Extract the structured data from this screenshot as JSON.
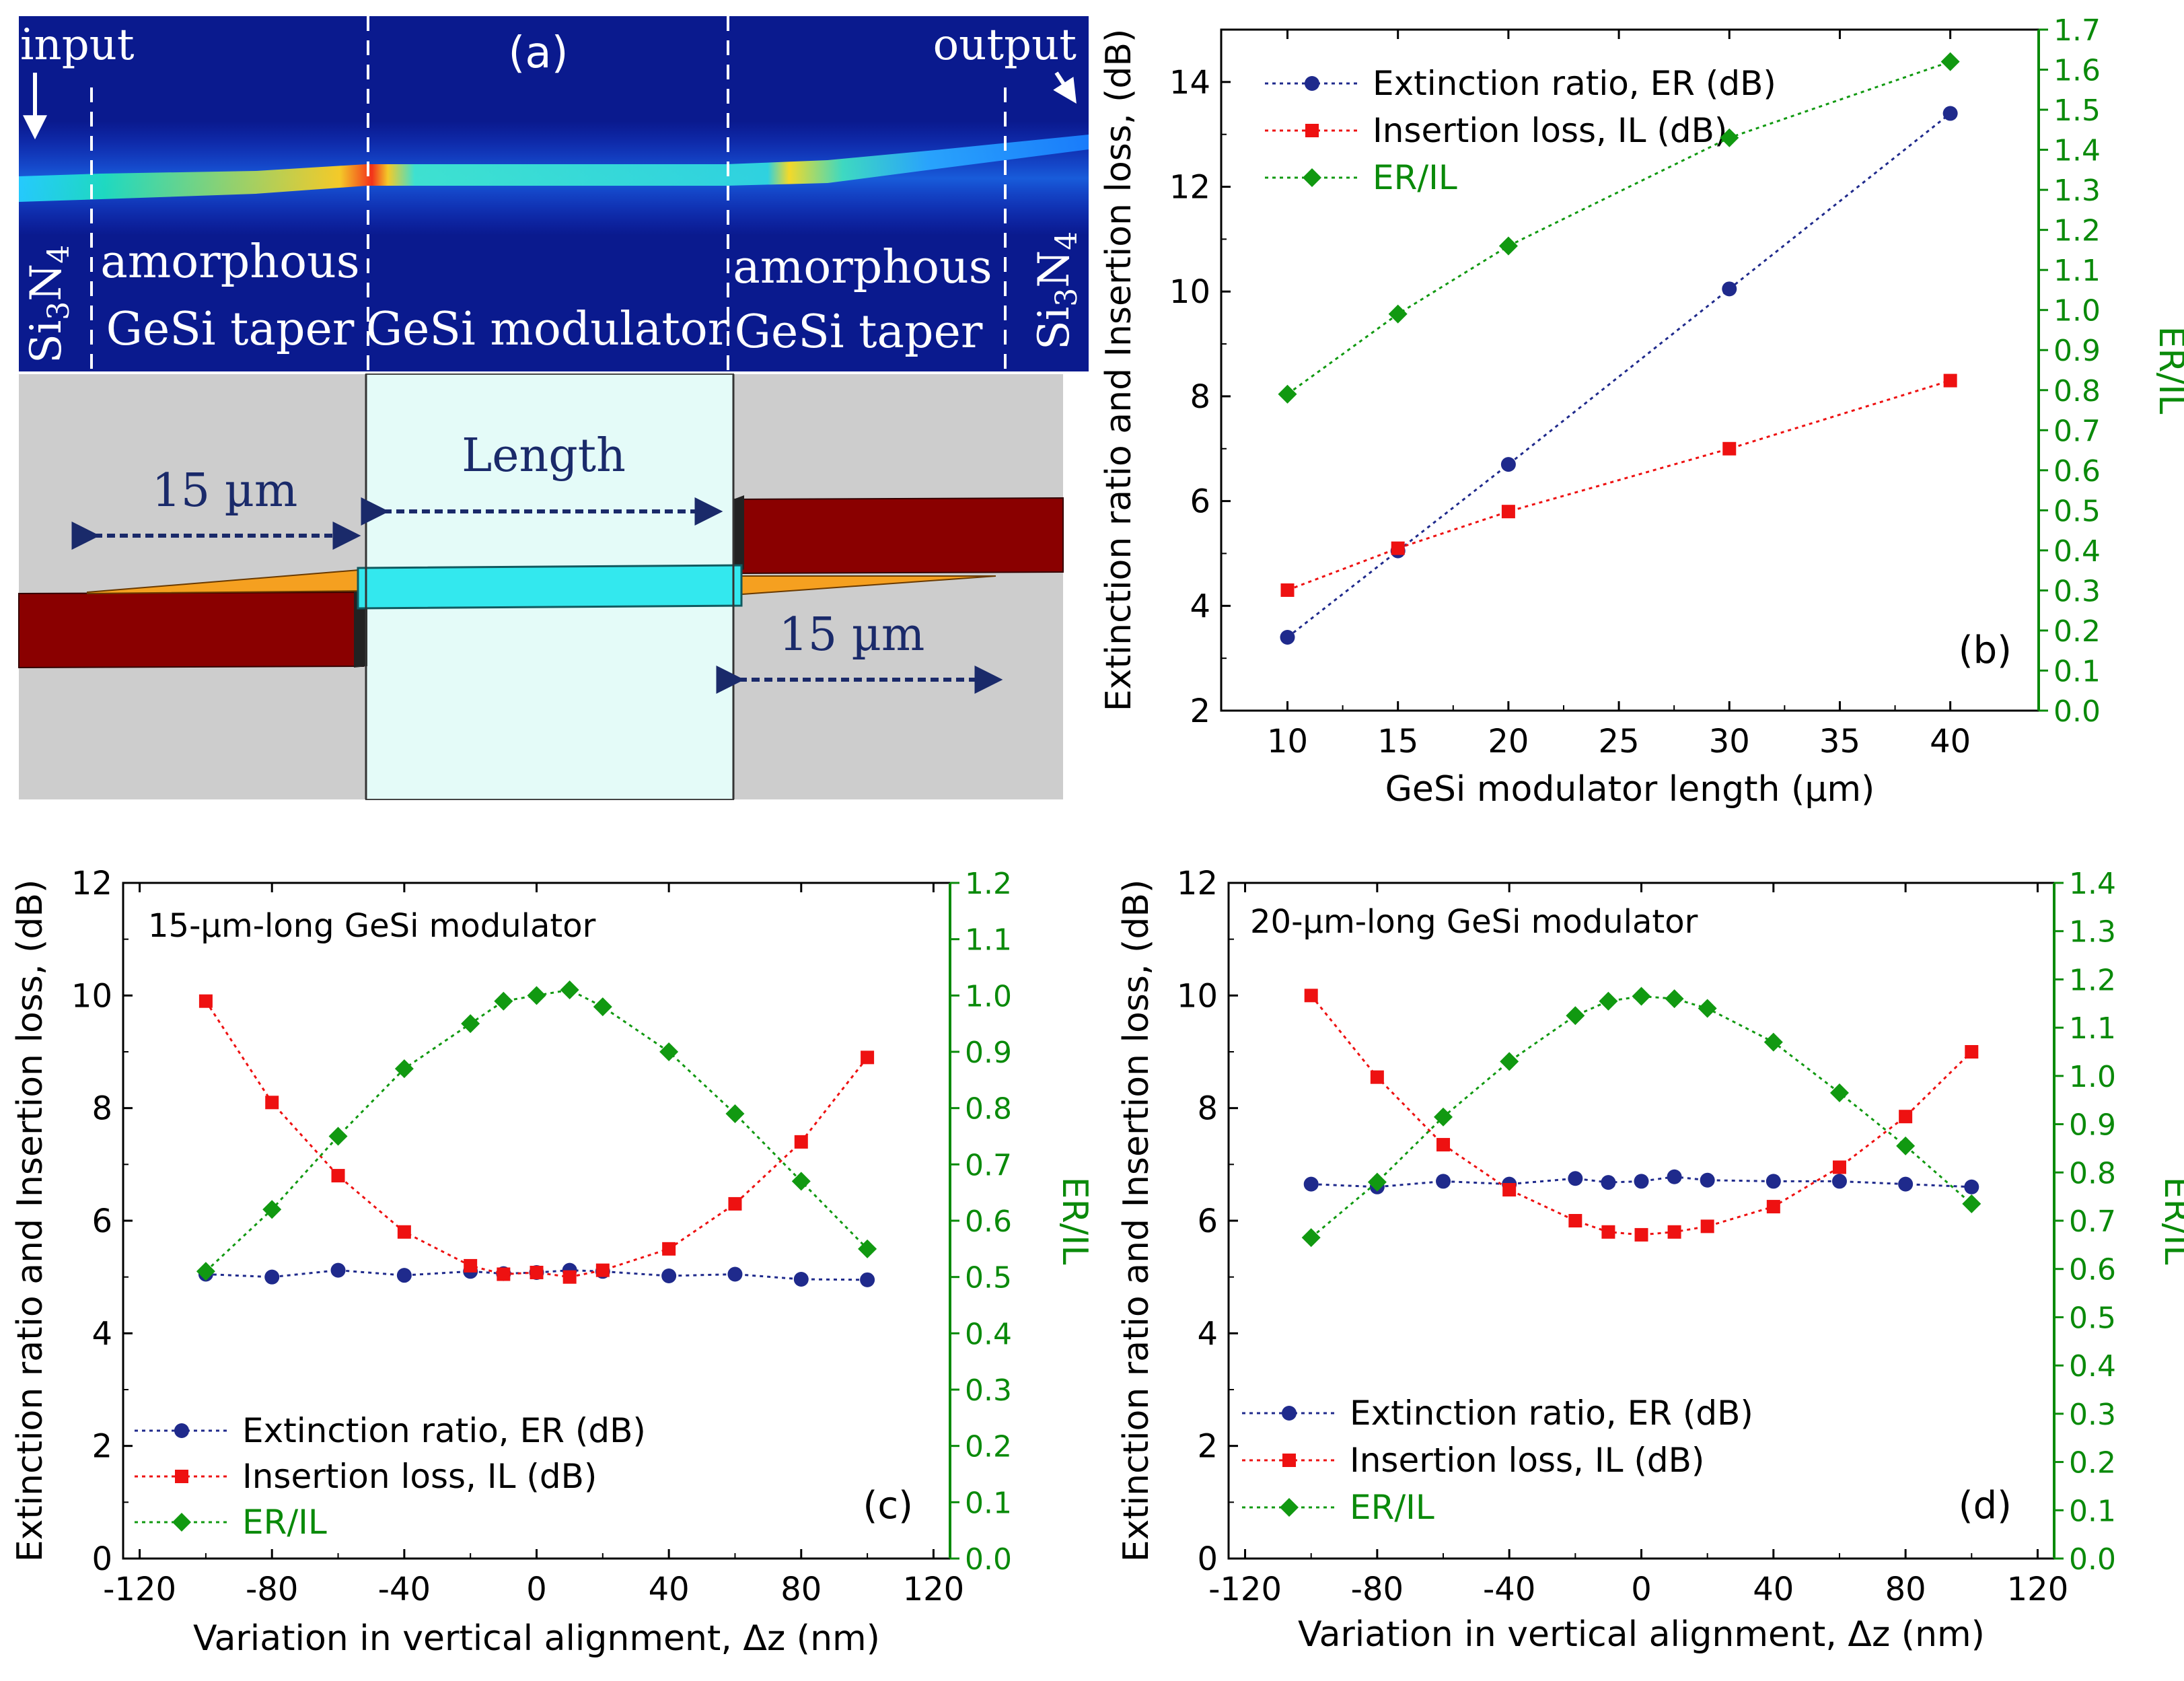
{
  "panel_a": {
    "label": "(a)",
    "input": "input",
    "output": "output",
    "si3n4_left": "Si3N4",
    "si3n4_right": "Si3N4",
    "taper_left_1": "amorphous",
    "taper_left_2": "GeSi taper",
    "modulator": "GeSi modulator",
    "taper_right_1": "amorphous",
    "taper_right_2": "GeSi taper",
    "length": "Length",
    "dim_left": "15 µm",
    "dim_right": "15 µm"
  },
  "colors": {
    "er": "#1f2a8c",
    "il": "#ee1111",
    "ratio": "#119911",
    "ratio_axis": "#0a8a0a"
  },
  "chart_data": [
    {
      "id": "b",
      "type": "line",
      "panel_label": "(b)",
      "xlabel": "GeSi modulator length (µm)",
      "ylabel": "Extinction ratio and Insertion loss, (dB)",
      "y2label": "ER/IL",
      "xlim": [
        7,
        44
      ],
      "xticks": [
        10,
        15,
        20,
        25,
        30,
        35,
        40
      ],
      "ylim": [
        2,
        15
      ],
      "yticks": [
        2,
        4,
        6,
        8,
        10,
        12,
        14
      ],
      "y2lim": [
        0,
        1.7
      ],
      "y2ticks": [
        0.0,
        0.1,
        0.2,
        0.3,
        0.4,
        0.5,
        0.6,
        0.7,
        0.8,
        0.9,
        1.0,
        1.1,
        1.2,
        1.3,
        1.4,
        1.5,
        1.6,
        1.7
      ],
      "legend_position": "top-left",
      "series": [
        {
          "name": "Extinction ratio, ER (dB)",
          "axis": "left",
          "marker": "circle",
          "x": [
            10,
            15,
            20,
            30,
            40
          ],
          "values": [
            3.4,
            5.05,
            6.7,
            10.05,
            13.4
          ]
        },
        {
          "name": "Insertion loss, IL (dB)",
          "axis": "left",
          "marker": "square",
          "x": [
            10,
            15,
            20,
            30,
            40
          ],
          "values": [
            4.3,
            5.1,
            5.8,
            7.0,
            8.3
          ]
        },
        {
          "name": "ER/IL",
          "axis": "right",
          "marker": "diamond",
          "x": [
            10,
            15,
            20,
            30,
            40
          ],
          "values": [
            0.79,
            0.99,
            1.16,
            1.43,
            1.62
          ]
        }
      ]
    },
    {
      "id": "c",
      "type": "line",
      "panel_label": "(c)",
      "annotation": "15-µm-long GeSi modulator",
      "xlabel": "Variation in vertical alignment, Δz (nm)",
      "ylabel": "Extinction ratio and Insertion loss, (dB)",
      "y2label": "ER/IL",
      "xlim": [
        -125,
        125
      ],
      "xticks": [
        -120,
        -80,
        -40,
        0,
        40,
        80,
        120
      ],
      "ylim": [
        0,
        12
      ],
      "yticks": [
        0,
        2,
        4,
        6,
        8,
        10,
        12
      ],
      "y2lim": [
        0,
        1.2
      ],
      "y2ticks": [
        0.0,
        0.1,
        0.2,
        0.3,
        0.4,
        0.5,
        0.6,
        0.7,
        0.8,
        0.9,
        1.0,
        1.1,
        1.2
      ],
      "legend_position": "bottom-left",
      "series": [
        {
          "name": "Extinction ratio, ER (dB)",
          "axis": "left",
          "marker": "circle",
          "x": [
            -100,
            -80,
            -60,
            -40,
            -20,
            -10,
            0,
            10,
            20,
            40,
            60,
            80,
            100
          ],
          "values": [
            5.05,
            5.0,
            5.12,
            5.03,
            5.1,
            5.06,
            5.08,
            5.12,
            5.1,
            5.02,
            5.05,
            4.96,
            4.95
          ]
        },
        {
          "name": "Insertion loss, IL (dB)",
          "axis": "left",
          "marker": "square",
          "x": [
            -100,
            -80,
            -60,
            -40,
            -20,
            -10,
            0,
            10,
            20,
            40,
            60,
            80,
            100
          ],
          "values": [
            9.9,
            8.1,
            6.8,
            5.8,
            5.2,
            5.05,
            5.08,
            5.0,
            5.12,
            5.5,
            6.3,
            7.4,
            8.9
          ]
        },
        {
          "name": "ER/IL",
          "axis": "right",
          "marker": "diamond",
          "x": [
            -100,
            -80,
            -60,
            -40,
            -20,
            -10,
            0,
            10,
            20,
            40,
            60,
            80,
            100
          ],
          "values": [
            0.51,
            0.62,
            0.75,
            0.87,
            0.95,
            0.99,
            1.0,
            1.01,
            0.98,
            0.9,
            0.79,
            0.67,
            0.55
          ]
        }
      ]
    },
    {
      "id": "d",
      "type": "line",
      "panel_label": "(d)",
      "annotation": "20-µm-long GeSi modulator",
      "xlabel": "Variation in vertical alignment, Δz (nm)",
      "ylabel": "Extinction ratio and Insertion loss, (dB)",
      "y2label": "ER/IL",
      "xlim": [
        -125,
        125
      ],
      "xticks": [
        -120,
        -80,
        -40,
        0,
        40,
        80,
        120
      ],
      "ylim": [
        0,
        12
      ],
      "yticks": [
        0,
        2,
        4,
        6,
        8,
        10,
        12
      ],
      "y2lim": [
        0,
        1.4
      ],
      "y2ticks": [
        0.0,
        0.1,
        0.2,
        0.3,
        0.4,
        0.5,
        0.6,
        0.7,
        0.8,
        0.9,
        1.0,
        1.1,
        1.2,
        1.3,
        1.4
      ],
      "legend_position": "bottom-left",
      "series": [
        {
          "name": "Extinction ratio, ER (dB)",
          "axis": "left",
          "marker": "circle",
          "x": [
            -100,
            -80,
            -60,
            -40,
            -20,
            -10,
            0,
            10,
            20,
            40,
            60,
            80,
            100
          ],
          "values": [
            6.65,
            6.6,
            6.7,
            6.65,
            6.75,
            6.68,
            6.7,
            6.78,
            6.72,
            6.7,
            6.7,
            6.65,
            6.6
          ]
        },
        {
          "name": "Insertion loss, IL (dB)",
          "axis": "left",
          "marker": "square",
          "x": [
            -100,
            -80,
            -60,
            -40,
            -20,
            -10,
            0,
            10,
            20,
            40,
            60,
            80,
            100
          ],
          "values": [
            10.0,
            8.55,
            7.35,
            6.55,
            6.0,
            5.8,
            5.75,
            5.8,
            5.9,
            6.25,
            6.95,
            7.85,
            9.0
          ]
        },
        {
          "name": "ER/IL",
          "axis": "right",
          "marker": "diamond",
          "x": [
            -100,
            -80,
            -60,
            -40,
            -20,
            -10,
            0,
            10,
            20,
            40,
            60,
            80,
            100
          ],
          "values": [
            0.665,
            0.78,
            0.915,
            1.03,
            1.125,
            1.155,
            1.165,
            1.16,
            1.14,
            1.07,
            0.965,
            0.855,
            0.735
          ]
        }
      ]
    }
  ]
}
